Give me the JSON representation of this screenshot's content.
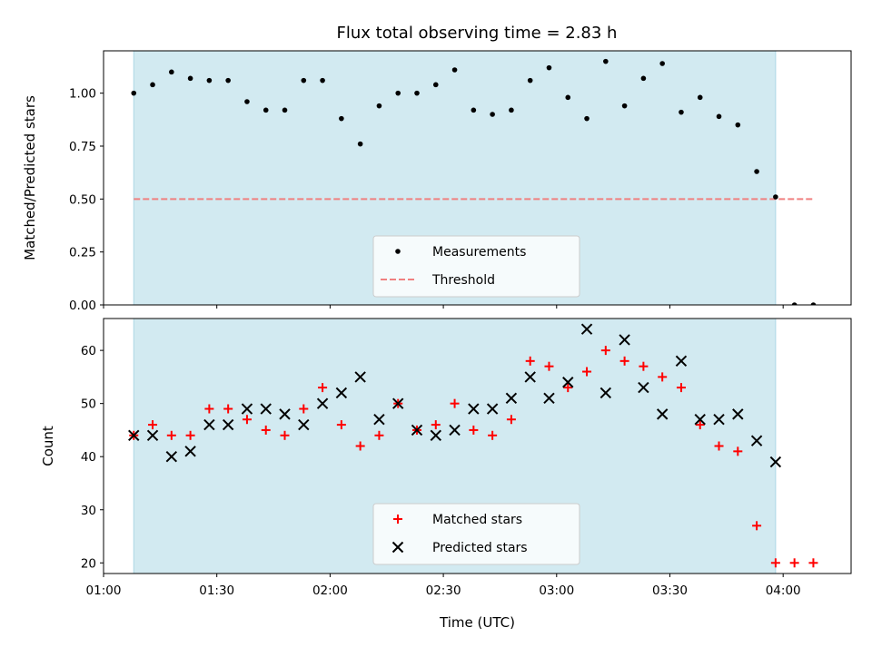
{
  "title": "Flux total observing time = 2.83 h",
  "colors": {
    "shade": "#add8e6",
    "measurement": "#000000",
    "threshold": "#f08080",
    "matched": "#ff0000",
    "predicted": "#000000"
  },
  "chart_data": [
    {
      "type": "scatter",
      "panel": "top",
      "ylabel": "Matched/Predicted stars",
      "xlabel": "",
      "xlim": [
        "01:00",
        "04:18"
      ],
      "ylim": [
        0,
        1.2
      ],
      "yticks": [
        0.0,
        0.25,
        0.5,
        0.75,
        1.0
      ],
      "ytick_labels": [
        "0.00",
        "0.25",
        "0.50",
        "0.75",
        "1.00"
      ],
      "grid": false,
      "shaded_interval": [
        "01:08",
        "03:58"
      ],
      "legend_position": "lower center",
      "legend": [
        "Measurements",
        "Threshold"
      ],
      "threshold": {
        "name": "Threshold",
        "value": 0.5,
        "x_range": [
          "01:08",
          "04:08"
        ],
        "style": "dashed"
      },
      "series": [
        {
          "name": "Measurements",
          "marker": "dot",
          "x": [
            "01:08",
            "01:13",
            "01:18",
            "01:23",
            "01:28",
            "01:33",
            "01:38",
            "01:43",
            "01:48",
            "01:53",
            "01:58",
            "02:03",
            "02:08",
            "02:13",
            "02:18",
            "02:23",
            "02:28",
            "02:33",
            "02:38",
            "02:43",
            "02:48",
            "02:53",
            "02:58",
            "03:03",
            "03:08",
            "03:13",
            "03:18",
            "03:23",
            "03:28",
            "03:33",
            "03:38",
            "03:43",
            "03:48",
            "03:53",
            "03:58",
            "04:03",
            "04:08"
          ],
          "y": [
            1.0,
            1.04,
            1.1,
            1.07,
            1.06,
            1.06,
            0.96,
            0.92,
            0.92,
            1.06,
            1.06,
            0.88,
            0.76,
            0.94,
            1.0,
            1.0,
            1.04,
            1.11,
            0.92,
            0.9,
            0.92,
            1.06,
            1.12,
            0.98,
            0.88,
            1.15,
            0.94,
            1.07,
            1.14,
            0.91,
            0.98,
            0.89,
            0.85,
            0.63,
            0.51,
            0.0,
            0.0
          ]
        }
      ]
    },
    {
      "type": "scatter",
      "panel": "bottom",
      "ylabel": "Count",
      "xlabel": "Time (UTC)",
      "xlim": [
        "01:00",
        "04:18"
      ],
      "xticks": [
        "01:00",
        "01:30",
        "02:00",
        "02:30",
        "03:00",
        "03:30",
        "04:00"
      ],
      "ylim": [
        18,
        66
      ],
      "yticks": [
        20,
        30,
        40,
        50,
        60
      ],
      "ytick_labels": [
        "20",
        "30",
        "40",
        "50",
        "60"
      ],
      "grid": false,
      "shaded_interval": [
        "01:08",
        "03:58"
      ],
      "legend_position": "lower center",
      "legend": [
        "Matched stars",
        "Predicted stars"
      ],
      "series": [
        {
          "name": "Matched stars",
          "marker": "plus",
          "x": [
            "01:08",
            "01:13",
            "01:18",
            "01:23",
            "01:28",
            "01:33",
            "01:38",
            "01:43",
            "01:48",
            "01:53",
            "01:58",
            "02:03",
            "02:08",
            "02:13",
            "02:18",
            "02:23",
            "02:28",
            "02:33",
            "02:38",
            "02:43",
            "02:48",
            "02:53",
            "02:58",
            "03:03",
            "03:08",
            "03:13",
            "03:18",
            "03:23",
            "03:28",
            "03:33",
            "03:38",
            "03:43",
            "03:48",
            "03:53",
            "03:58",
            "04:03",
            "04:08"
          ],
          "y": [
            44,
            46,
            44,
            44,
            49,
            49,
            47,
            45,
            44,
            49,
            53,
            46,
            42,
            44,
            50,
            45,
            46,
            50,
            45,
            44,
            47,
            58,
            57,
            53,
            56,
            60,
            58,
            57,
            55,
            53,
            46,
            42,
            41,
            27,
            20,
            20,
            20
          ]
        },
        {
          "name": "Predicted stars",
          "marker": "x",
          "x": [
            "01:08",
            "01:13",
            "01:18",
            "01:23",
            "01:28",
            "01:33",
            "01:38",
            "01:43",
            "01:48",
            "01:53",
            "01:58",
            "02:03",
            "02:08",
            "02:13",
            "02:18",
            "02:23",
            "02:28",
            "02:33",
            "02:38",
            "02:43",
            "02:48",
            "02:53",
            "02:58",
            "03:03",
            "03:08",
            "03:13",
            "03:18",
            "03:23",
            "03:28",
            "03:33",
            "03:38",
            "03:43",
            "03:48",
            "03:53",
            "03:58"
          ],
          "y": [
            44,
            44,
            40,
            41,
            46,
            46,
            49,
            49,
            48,
            46,
            50,
            52,
            55,
            47,
            50,
            45,
            44,
            45,
            49,
            49,
            51,
            55,
            51,
            54,
            64,
            52,
            62,
            53,
            48,
            58,
            47,
            47,
            48,
            43,
            39
          ]
        }
      ]
    }
  ]
}
